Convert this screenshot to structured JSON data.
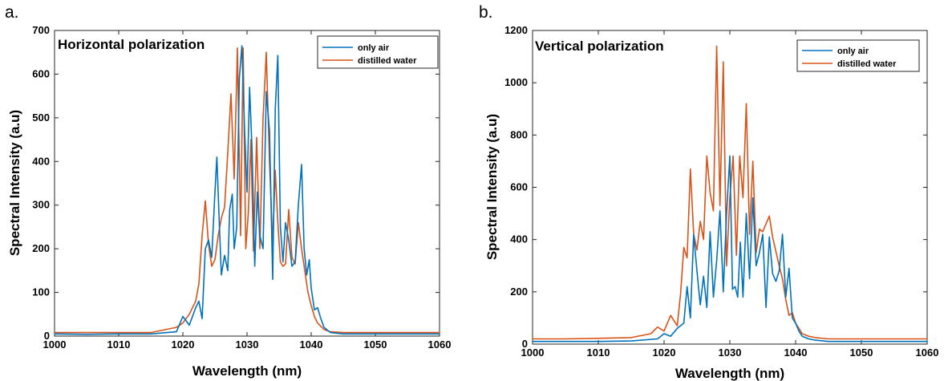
{
  "chart_data": [
    {
      "type": "line",
      "panel_label": "a.",
      "title": "Horizontal polarization",
      "xlabel": "Wavelength (nm)",
      "ylabel": "Spectral Intensity (a.u)",
      "xlim": [
        1000,
        1060
      ],
      "ylim": [
        0,
        700
      ],
      "xticks": [
        1000,
        1010,
        1020,
        1030,
        1040,
        1050,
        1060
      ],
      "yticks": [
        0,
        100,
        200,
        300,
        400,
        500,
        600,
        700
      ],
      "grid": false,
      "legend_position": "top-right",
      "series": [
        {
          "name": "only air",
          "color": "#0072BD",
          "x": [
            1000,
            1005,
            1010,
            1015,
            1019,
            1020,
            1021,
            1022,
            1022.5,
            1023,
            1023.5,
            1024,
            1024.5,
            1025,
            1025.3,
            1025.7,
            1026,
            1026.5,
            1027,
            1027.3,
            1027.7,
            1028,
            1028.4,
            1028.8,
            1029.2,
            1029.6,
            1030,
            1030.4,
            1030.8,
            1031.2,
            1031.6,
            1032,
            1032.5,
            1033,
            1033.5,
            1034,
            1034.4,
            1034.8,
            1035.2,
            1035.6,
            1036,
            1036.5,
            1037,
            1037.5,
            1038,
            1038.5,
            1038.9,
            1039.3,
            1039.7,
            1040,
            1040.5,
            1041,
            1041.5,
            1042,
            1043,
            1045,
            1050,
            1055,
            1060
          ],
          "y": [
            5,
            4,
            5,
            5,
            10,
            45,
            25,
            65,
            80,
            40,
            200,
            220,
            180,
            330,
            410,
            250,
            140,
            185,
            150,
            290,
            325,
            200,
            250,
            590,
            665,
            480,
            330,
            570,
            420,
            160,
            330,
            230,
            200,
            560,
            470,
            130,
            520,
            643,
            250,
            170,
            260,
            220,
            160,
            170,
            300,
            393,
            200,
            140,
            175,
            110,
            60,
            65,
            40,
            20,
            8,
            5,
            5,
            5,
            5
          ]
        },
        {
          "name": "distilled water",
          "color": "#D95319",
          "x": [
            1000,
            1005,
            1010,
            1015,
            1019,
            1020,
            1021,
            1022,
            1022.5,
            1023,
            1023.5,
            1024,
            1024.5,
            1025,
            1025.5,
            1026,
            1026.5,
            1027,
            1027.5,
            1028,
            1028.5,
            1029,
            1029.4,
            1029.8,
            1030.2,
            1030.6,
            1031,
            1031.5,
            1032,
            1032.5,
            1033,
            1033.5,
            1034,
            1034.4,
            1034.8,
            1035.2,
            1035.6,
            1036,
            1036.5,
            1037,
            1037.5,
            1038,
            1038.5,
            1039,
            1039.5,
            1040,
            1040.5,
            1041,
            1042,
            1043,
            1045,
            1050,
            1055,
            1060
          ],
          "y": [
            8,
            8,
            8,
            8,
            20,
            30,
            50,
            80,
            120,
            230,
            310,
            210,
            160,
            175,
            230,
            270,
            295,
            420,
            555,
            360,
            660,
            230,
            660,
            200,
            280,
            450,
            195,
            455,
            200,
            500,
            650,
            400,
            210,
            380,
            260,
            170,
            160,
            165,
            290,
            180,
            165,
            260,
            200,
            150,
            100,
            70,
            45,
            30,
            15,
            10,
            8,
            8,
            8,
            8
          ]
        }
      ]
    },
    {
      "type": "line",
      "panel_label": "b.",
      "title": "Vertical polarization",
      "xlabel": "Wavelength (nm)",
      "ylabel": "Spectral Intensity (a.u)",
      "xlim": [
        1000,
        1060
      ],
      "ylim": [
        0,
        1200
      ],
      "xticks": [
        1000,
        1010,
        1020,
        1030,
        1040,
        1050,
        1060
      ],
      "yticks": [
        0,
        200,
        400,
        600,
        800,
        1000,
        1200
      ],
      "grid": false,
      "legend_position": "top-right",
      "series": [
        {
          "name": "only air",
          "color": "#0072BD",
          "x": [
            1000,
            1005,
            1010,
            1015,
            1019,
            1020,
            1021,
            1022,
            1023,
            1023.5,
            1024,
            1024.5,
            1025,
            1025.5,
            1026,
            1026.5,
            1027,
            1027.5,
            1028,
            1028.5,
            1029,
            1029.5,
            1030,
            1030.4,
            1030.8,
            1031.2,
            1031.6,
            1032,
            1032.5,
            1033,
            1033.5,
            1034,
            1034.5,
            1035,
            1035.5,
            1036,
            1036.5,
            1037,
            1037.5,
            1038,
            1038.5,
            1039,
            1039.5,
            1040,
            1040.5,
            1041,
            1042,
            1043,
            1045,
            1050,
            1055,
            1060
          ],
          "y": [
            10,
            10,
            10,
            12,
            20,
            40,
            30,
            60,
            80,
            220,
            100,
            420,
            280,
            150,
            260,
            140,
            430,
            180,
            320,
            510,
            200,
            500,
            720,
            210,
            220,
            180,
            390,
            180,
            500,
            250,
            560,
            300,
            350,
            420,
            140,
            410,
            270,
            240,
            280,
            420,
            180,
            290,
            100,
            80,
            50,
            30,
            20,
            15,
            10,
            10,
            10,
            10
          ]
        },
        {
          "name": "distilled water",
          "color": "#D95319",
          "x": [
            1000,
            1005,
            1010,
            1015,
            1018,
            1019,
            1020,
            1021,
            1022,
            1022.5,
            1023,
            1023.5,
            1024,
            1024.5,
            1025,
            1025.5,
            1026,
            1026.5,
            1027,
            1027.5,
            1028,
            1028.5,
            1029,
            1029.5,
            1030,
            1030.5,
            1031,
            1031.5,
            1032,
            1032.5,
            1033,
            1033.5,
            1034,
            1034.5,
            1035,
            1035.5,
            1036,
            1036.5,
            1037,
            1037.5,
            1038,
            1038.5,
            1039,
            1039.5,
            1040,
            1040.5,
            1041,
            1042,
            1043,
            1045,
            1050,
            1055,
            1060
          ],
          "y": [
            20,
            20,
            22,
            25,
            40,
            65,
            50,
            110,
            70,
            190,
            370,
            330,
            670,
            420,
            360,
            470,
            400,
            720,
            580,
            510,
            1140,
            530,
            1080,
            300,
            560,
            720,
            340,
            720,
            560,
            920,
            420,
            700,
            350,
            440,
            430,
            460,
            490,
            410,
            355,
            300,
            250,
            170,
            110,
            120,
            80,
            60,
            40,
            30,
            25,
            20,
            20,
            20,
            20
          ]
        }
      ]
    }
  ]
}
